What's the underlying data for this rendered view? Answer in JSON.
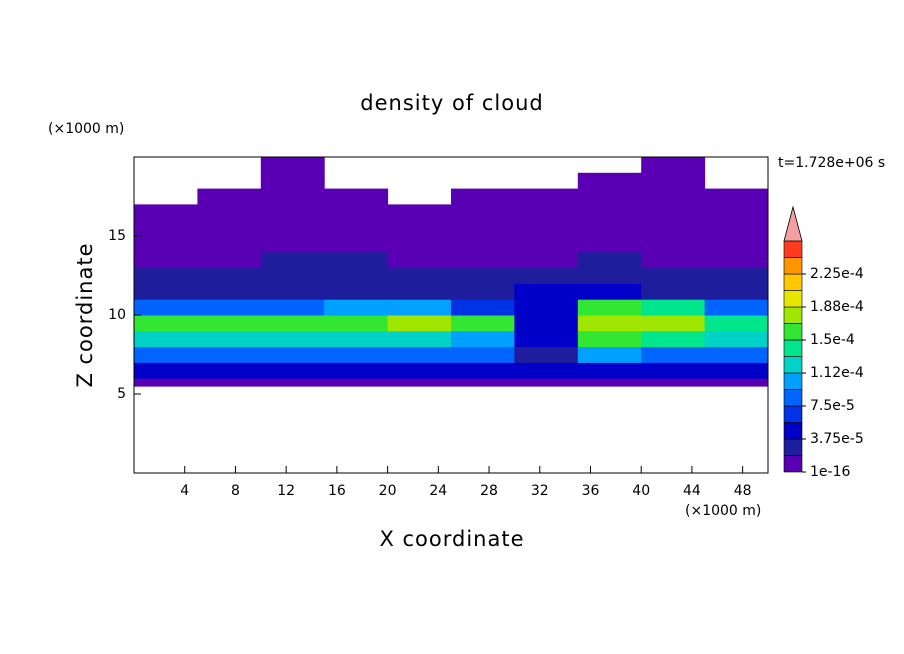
{
  "chart_data": {
    "type": "contour",
    "title": "density of cloud",
    "xlabel": "X coordinate",
    "ylabel": "Z coordinate",
    "x_unit": "(×1000 m)",
    "y_unit": "(×1000 m)",
    "time_label": "t=1.728e+06 s",
    "xlim": [
      0,
      50
    ],
    "ylim": [
      0,
      20
    ],
    "xticks": [
      4,
      8,
      12,
      16,
      20,
      24,
      28,
      32,
      36,
      40,
      44,
      48
    ],
    "yticks": [
      5,
      10,
      15
    ],
    "x_edges": [
      0,
      5,
      10,
      15,
      20,
      25,
      30,
      35,
      40,
      45,
      50
    ],
    "z_edges": [
      5.5,
      6,
      7,
      8,
      9,
      10,
      11,
      12,
      13,
      14,
      15,
      16,
      17,
      18,
      19,
      20
    ],
    "values": [
      [
        1e-05,
        1e-05,
        1e-05,
        1e-05,
        1e-05,
        1e-05,
        1e-05,
        1e-05,
        1e-05,
        1e-05
      ],
      [
        4e-05,
        4e-05,
        4e-05,
        4e-05,
        4e-05,
        4e-05,
        4e-05,
        4e-05,
        4e-05,
        4e-05
      ],
      [
        9e-05,
        9e-05,
        8e-05,
        9e-05,
        9e-05,
        8e-05,
        3e-05,
        0.0001,
        9e-05,
        9e-05
      ],
      [
        0.00013,
        0.00012,
        0.00013,
        0.00013,
        0.00013,
        0.0001,
        4e-05,
        0.00015,
        0.00014,
        0.00013
      ],
      [
        0.00016,
        0.00015,
        0.00015,
        0.00016,
        0.00017,
        0.00015,
        5e-05,
        0.00018,
        0.00017,
        0.00014
      ],
      [
        8e-05,
        9e-05,
        8e-05,
        0.0001,
        0.0001,
        6e-05,
        4e-05,
        0.00016,
        0.00014,
        8e-05
      ],
      [
        3e-05,
        3e-05,
        3e-05,
        3e-05,
        3e-05,
        3e-05,
        5e-05,
        5e-05,
        3e-05,
        3e-05
      ],
      [
        2e-05,
        2e-05,
        2.5e-05,
        2.5e-05,
        2e-05,
        2e-05,
        2.5e-05,
        2.5e-05,
        2e-05,
        2e-05
      ],
      [
        1e-05,
        1e-05,
        2e-05,
        2e-05,
        1e-05,
        1e-05,
        1e-05,
        2e-05,
        1e-05,
        1e-05
      ],
      [
        5e-06,
        5e-06,
        5e-06,
        5e-06,
        5e-06,
        5e-06,
        5e-06,
        5e-06,
        5e-06,
        5e-06
      ],
      [
        5e-06,
        5e-06,
        5e-06,
        5e-06,
        5e-06,
        5e-06,
        5e-06,
        5e-06,
        5e-06,
        5e-06
      ],
      [
        5e-06,
        5e-06,
        5e-06,
        5e-06,
        5e-06,
        5e-06,
        5e-06,
        5e-06,
        5e-06,
        5e-06
      ],
      [
        null,
        5e-06,
        5e-06,
        5e-06,
        null,
        5e-06,
        5e-06,
        5e-06,
        5e-06,
        5e-06
      ],
      [
        null,
        null,
        5e-06,
        null,
        null,
        null,
        null,
        5e-06,
        5e-06,
        null
      ],
      [
        null,
        null,
        5e-06,
        null,
        null,
        null,
        null,
        null,
        5e-06,
        null
      ]
    ],
    "levels": [
      {
        "value": 1e-16,
        "label": "1e-16"
      },
      1.875e-05,
      {
        "value": 3.75e-05,
        "label": "3.75e-5"
      },
      5.625e-05,
      {
        "value": 7.5e-05,
        "label": "7.5e-5"
      },
      9.375e-05,
      {
        "value": 0.000112,
        "label": "1.12e-4"
      },
      0.00013125,
      {
        "value": 0.00015,
        "label": "1.5e-4"
      },
      0.00016875,
      {
        "value": 0.000188,
        "label": "1.88e-4"
      },
      0.00020625,
      {
        "value": 0.000225,
        "label": "2.25e-4"
      },
      0.00024375
    ],
    "colors": [
      "#5a00b4",
      "#1e1e9c",
      "#0000c8",
      "#0032e6",
      "#0064ff",
      "#00a0ff",
      "#00d2c8",
      "#00e68c",
      "#32e632",
      "#a0e600",
      "#e6e600",
      "#ffc800",
      "#ff9600",
      "#ff3c1e"
    ],
    "over_color": "#f4a0a0"
  }
}
